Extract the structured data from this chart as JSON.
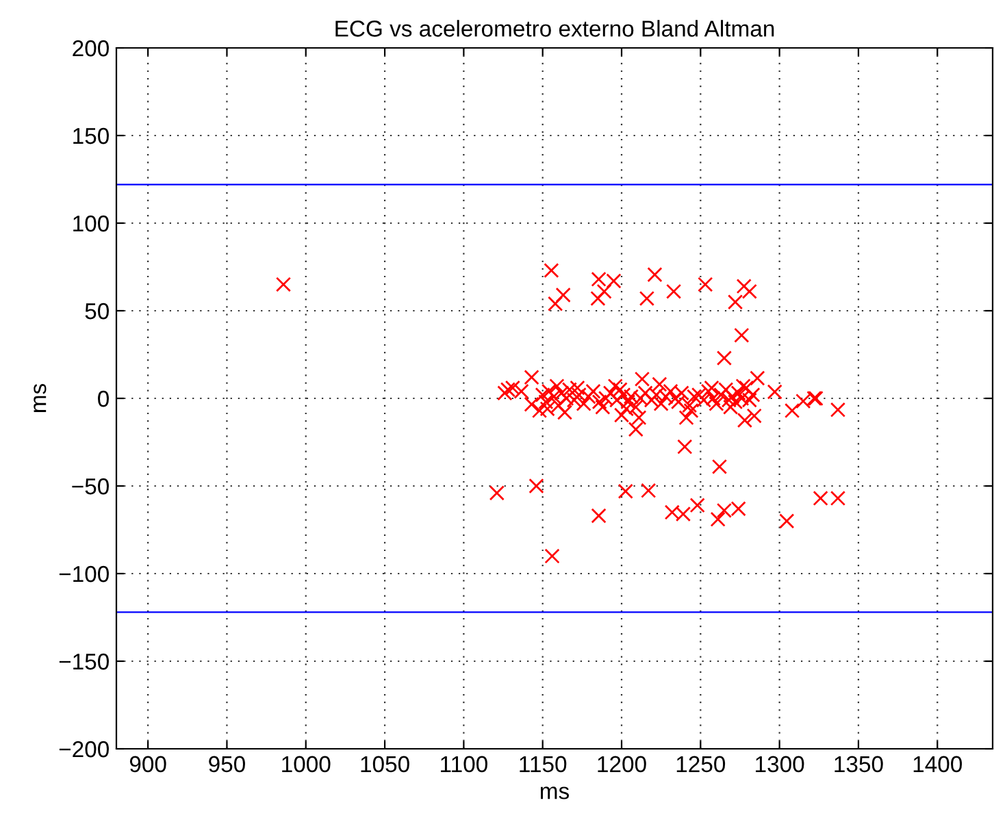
{
  "chart_data": {
    "type": "scatter",
    "title": "ECG vs acelerometro externo Bland Altman",
    "xlabel": "ms",
    "ylabel": "ms",
    "x": [
      985.8,
      1155.5,
      1163,
      1158,
      1185.5,
      1195,
      1189,
      1185,
      1221,
      1216,
      1233,
      1253,
      1277.5,
      1281,
      1272,
      1276,
      1265,
      1143,
      1213,
      1286,
      1209,
      1240,
      1262,
      1121,
      1146,
      1202.5,
      1217,
      1185.5,
      1232,
      1239,
      1248,
      1261,
      1265,
      1274,
      1304.6,
      1326,
      1156,
      1337,
      1323,
      1337,
      1128,
      1136.5,
      1143,
      1148,
      1200,
      1211,
      1241,
      1278,
      1284,
      1308,
      1315,
      1322,
      1297,
      1126,
      1131,
      1150,
      1152,
      1154,
      1157,
      1160,
      1162,
      1165,
      1167,
      1170,
      1173,
      1176,
      1179,
      1182,
      1186,
      1190,
      1193,
      1197,
      1199,
      1201,
      1204,
      1206,
      1209,
      1212,
      1215,
      1219,
      1222,
      1225,
      1228,
      1231,
      1234,
      1236,
      1238,
      1243,
      1246,
      1249,
      1252,
      1255,
      1258,
      1260,
      1263,
      1266,
      1268,
      1270,
      1272,
      1274,
      1276,
      1279,
      1281,
      1283,
      1153,
      1159,
      1164,
      1172,
      1188,
      1196,
      1203,
      1224,
      1244,
      1257,
      1269,
      1277
    ],
    "values": [
      65,
      73,
      59,
      54,
      68,
      67,
      61,
      57,
      70.6,
      57,
      61,
      65,
      64,
      61,
      55,
      36,
      23,
      12,
      11,
      11.5,
      -17.7,
      -27.6,
      -39,
      -54,
      -50,
      -53,
      -52.6,
      -67,
      -65,
      -66,
      -61,
      -69,
      -64,
      -63,
      -70,
      -57,
      -90,
      -57,
      0,
      -6.5,
      5,
      4,
      -3.4,
      -7,
      -9.6,
      -11,
      -11,
      -12.5,
      -10,
      -7,
      -1.6,
      0,
      3.7,
      3,
      6,
      2,
      -2,
      4,
      1,
      -4,
      3,
      0,
      5,
      -1,
      2,
      -3,
      1,
      4,
      -2,
      0,
      3,
      -1,
      5,
      2,
      -2,
      1,
      -5,
      0,
      3,
      -1,
      2,
      -3,
      1,
      4,
      0,
      -2,
      3,
      -4,
      1,
      2,
      -1,
      4,
      0,
      -3,
      2,
      5,
      -1,
      1,
      -2,
      3,
      0,
      6,
      -1,
      2,
      -6,
      7,
      -8,
      6,
      -5,
      7,
      -6,
      8,
      -7,
      6,
      -5,
      7
    ],
    "color": "#ff0000",
    "marker": "cross",
    "xlim": [
      880,
      1435
    ],
    "xticks": [
      900,
      950,
      1000,
      1050,
      1100,
      1150,
      1200,
      1250,
      1300,
      1350,
      1400
    ],
    "ylim": [
      -200,
      200
    ],
    "yticks": [
      -200,
      -150,
      -100,
      -50,
      0,
      50,
      100,
      150,
      200
    ],
    "grid": true,
    "ref_lines": [
      {
        "axis": "y",
        "value": 122,
        "color": "#0000ff"
      },
      {
        "axis": "y",
        "value": -122,
        "color": "#0000ff"
      }
    ]
  }
}
